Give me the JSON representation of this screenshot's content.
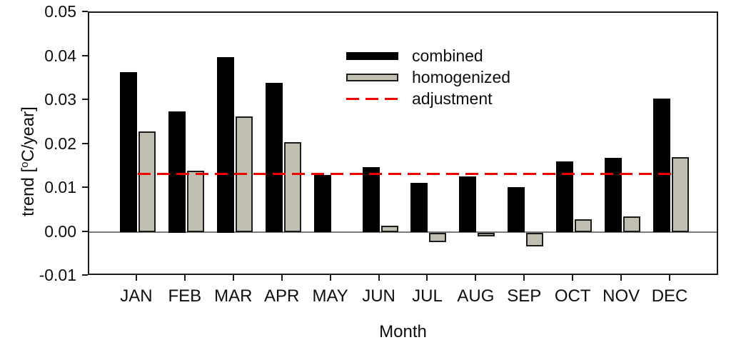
{
  "chart_data": {
    "type": "bar",
    "title": "",
    "xlabel": "Month",
    "ylabel": "trend [°C/year]",
    "ylabel_parts": {
      "prefix": "trend [",
      "sup": "o",
      "suffix": "C/year]"
    },
    "categories": [
      "JAN",
      "FEB",
      "MAR",
      "APR",
      "MAY",
      "JUN",
      "JUL",
      "AUG",
      "SEP",
      "OCT",
      "NOV",
      "DEC"
    ],
    "series": [
      {
        "name": "combined",
        "color": "#000000",
        "values": [
          0.0365,
          0.0275,
          0.04,
          0.034,
          0.0131,
          0.0148,
          0.0113,
          0.0127,
          0.0104,
          0.0162,
          0.017,
          0.0305
        ]
      },
      {
        "name": "homogenized",
        "color": "#c1bfb1",
        "values": [
          0.023,
          0.0141,
          0.0265,
          0.0205,
          null,
          0.0016,
          -0.0022,
          -0.0009,
          -0.0031,
          0.003,
          0.0037,
          0.0172
        ]
      }
    ],
    "adjustment_line": {
      "name": "adjustment",
      "value": 0.0134,
      "color": "#f20000",
      "style": "dashed"
    },
    "ylim": [
      -0.01,
      0.05
    ],
    "yticks": [
      0.05,
      0.04,
      0.03,
      0.02,
      0.01,
      0.0,
      -0.01
    ],
    "ytick_labels": [
      "0.05",
      "0.04",
      "0.03",
      "0.02",
      "0.01",
      "0.00",
      "-0.01"
    ],
    "grid": "off",
    "legend_position": "upper center-right inside",
    "legend_entries": [
      "combined",
      "homogenized",
      "adjustment"
    ]
  },
  "colors": {
    "bar_combined": "#000000",
    "bar_homogenized_fill": "#c1bfb1",
    "bar_border": "#1c1c1c",
    "adjustment": "#f20000",
    "axis": "#1c1c1c",
    "zero_line": "#7a7a7a",
    "background": "#ffffff"
  }
}
